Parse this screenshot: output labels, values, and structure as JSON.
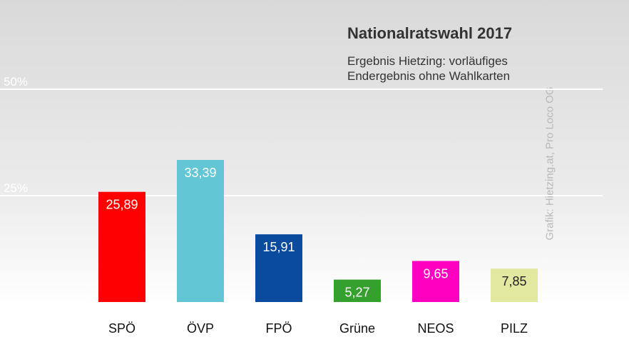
{
  "chart_data": {
    "type": "bar",
    "title": "Nationalratswahl 2017",
    "subtitle_lines": [
      "Ergebnis Hietzing: vorläufiges",
      "Endergebnis ohne Wahlkarten"
    ],
    "categories": [
      "SPÖ",
      "ÖVP",
      "FPÖ",
      "Grüne",
      "NEOS",
      "PILZ"
    ],
    "values": [
      25.89,
      33.39,
      15.91,
      5.27,
      9.65,
      7.85
    ],
    "value_labels": [
      "25,89",
      "33,39",
      "15,91",
      "5,27",
      "9,65",
      "7,85"
    ],
    "colors": [
      "#ff0000",
      "#62c6d4",
      "#0a4b9e",
      "#35a02e",
      "#ff00c0",
      "#e3e8a0"
    ],
    "label_colors": [
      "#ffffff",
      "#ffffff",
      "#ffffff",
      "#ffffff",
      "#ffffff",
      "#222222"
    ],
    "ylim": [
      0,
      50
    ],
    "ytick_values": [
      25,
      50
    ],
    "ytick_labels": [
      "25%",
      "50%"
    ],
    "grid": true,
    "credit": "Grafik: Hietzing.at, Pro Loco OG"
  }
}
